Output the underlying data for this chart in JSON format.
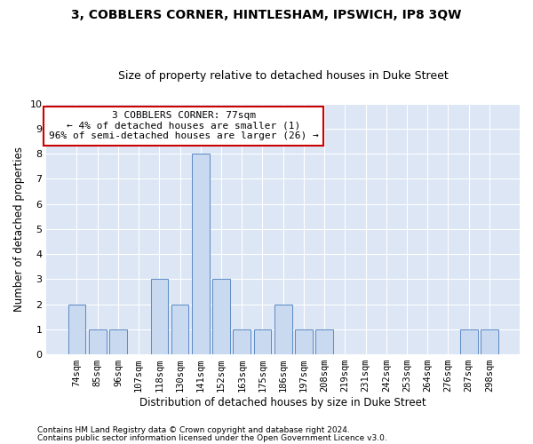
{
  "title": "3, COBBLERS CORNER, HINTLESHAM, IPSWICH, IP8 3QW",
  "subtitle": "Size of property relative to detached houses in Duke Street",
  "xlabel": "Distribution of detached houses by size in Duke Street",
  "ylabel": "Number of detached properties",
  "categories": [
    "74sqm",
    "85sqm",
    "96sqm",
    "107sqm",
    "118sqm",
    "130sqm",
    "141sqm",
    "152sqm",
    "163sqm",
    "175sqm",
    "186sqm",
    "197sqm",
    "208sqm",
    "219sqm",
    "231sqm",
    "242sqm",
    "253sqm",
    "264sqm",
    "276sqm",
    "287sqm",
    "298sqm"
  ],
  "values": [
    2,
    1,
    1,
    0,
    3,
    2,
    8,
    3,
    1,
    1,
    2,
    1,
    1,
    0,
    0,
    0,
    0,
    0,
    0,
    1,
    1
  ],
  "bar_color": "#c9d9f0",
  "bar_edge_color": "#5b8ac5",
  "annotation_line1": "3 COBBLERS CORNER: 77sqm",
  "annotation_line2": "← 4% of detached houses are smaller (1)",
  "annotation_line3": "96% of semi-detached houses are larger (26) →",
  "annotation_box_edge_color": "#cc0000",
  "ylim": [
    0,
    10
  ],
  "yticks": [
    0,
    1,
    2,
    3,
    4,
    5,
    6,
    7,
    8,
    9,
    10
  ],
  "footer1": "Contains HM Land Registry data © Crown copyright and database right 2024.",
  "footer2": "Contains public sector information licensed under the Open Government Licence v3.0.",
  "plot_bg_color": "#dce6f5",
  "title_fontsize": 10,
  "subtitle_fontsize": 9,
  "tick_fontsize": 7.5,
  "label_fontsize": 8.5,
  "annotation_fontsize": 8
}
